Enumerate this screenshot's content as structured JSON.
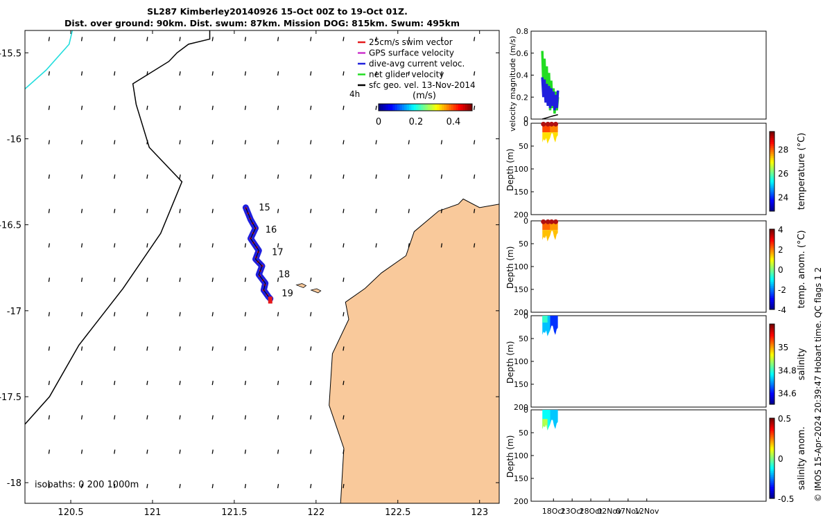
{
  "title": {
    "line1": "SL287 Kimberley20140926 15-Oct 00Z to 19-Oct 01Z.",
    "line2": "Dist. over ground: 90km. Dist. swum: 87km. Mission DOG: 815km. Swum: 495km"
  },
  "footer_note": "© IMOS 15-Apr-2024 20:39:47 Hobart time. QC flags 1  2",
  "isobaths_label": "isobaths: 0   200  1000m",
  "colors": {
    "land": "#f9c99b",
    "swim": "#e41a1c",
    "gps": "#cc33cc",
    "dive": "#1f1fdd",
    "net": "#22dd22",
    "sfc": "#000000",
    "isobath0": "#22dddd"
  },
  "chart_data": [
    {
      "type": "scatter",
      "name": "map",
      "xlabel": "",
      "ylabel": "",
      "xlim": [
        120.22,
        123.12
      ],
      "ylim": [
        -18.12,
        -15.37
      ],
      "xticks": [
        120.5,
        121,
        121.5,
        122,
        122.5,
        123
      ],
      "xtick_labels": [
        "120.5",
        "121",
        "121.5",
        "122",
        "122.5",
        "123"
      ],
      "yticks": [
        -15.5,
        -16,
        -16.5,
        -17,
        -17.5,
        -18
      ],
      "ytick_labels": [
        "-15.5",
        "-16",
        "-16.5",
        "-17",
        "-17.5",
        "-18"
      ],
      "track": {
        "lon": [
          121.57,
          121.6,
          121.63,
          121.6,
          121.65,
          121.63,
          121.67,
          121.65,
          121.69,
          121.68,
          121.71,
          121.72
        ],
        "lat": [
          -16.4,
          -16.47,
          -16.52,
          -16.58,
          -16.65,
          -16.7,
          -16.74,
          -16.79,
          -16.84,
          -16.88,
          -16.92,
          -16.93
        ]
      },
      "day_labels": [
        {
          "text": "15",
          "lon": 121.65,
          "lat": -16.4
        },
        {
          "text": "16",
          "lon": 121.69,
          "lat": -16.53
        },
        {
          "text": "17",
          "lon": 121.73,
          "lat": -16.66
        },
        {
          "text": "18",
          "lon": 121.77,
          "lat": -16.79
        },
        {
          "text": "19",
          "lon": 121.79,
          "lat": -16.9
        }
      ],
      "legend": [
        {
          "label": "25cm/s swim vector",
          "color_key": "swim"
        },
        {
          "label": "GPS surface velocity",
          "color_key": "gps"
        },
        {
          "label": "dive-avg current veloc.",
          "color_key": "dive"
        },
        {
          "label": "net glider velocity",
          "color_key": "net"
        },
        {
          "label": "sfc geo. vel. 13-Nov-2014",
          "color_key": "sfc"
        }
      ],
      "scale_label": "4h",
      "colorbar": {
        "label": "(m/s)",
        "ticks": [
          0,
          0.2,
          0.4
        ],
        "tick_labels": [
          "0",
          "0.2",
          "0.4"
        ],
        "range": [
          0,
          0.5
        ]
      },
      "isobath_200": {
        "lon": [
          120.22,
          120.37,
          120.55,
          120.82,
          121.05,
          121.18,
          120.98,
          120.9,
          120.88,
          121.1,
          121.15,
          121.22,
          121.35,
          121.35
        ],
        "lat": [
          -17.66,
          -17.5,
          -17.2,
          -16.87,
          -16.55,
          -16.25,
          -16.05,
          -15.8,
          -15.68,
          -15.55,
          -15.5,
          -15.45,
          -15.42,
          -15.37
        ]
      },
      "isobath_0": {
        "lon": [
          120.22,
          120.35,
          120.49,
          120.51
        ],
        "lat": [
          -15.71,
          -15.6,
          -15.45,
          -15.37
        ]
      },
      "coast": {
        "lon": [
          122.18,
          122.3,
          122.4,
          122.55,
          122.6,
          122.75,
          122.87,
          122.9,
          123.0,
          123.12,
          123.12,
          122.15,
          122.17,
          122.08,
          122.1,
          122.2,
          122.18
        ],
        "lat": [
          -16.95,
          -16.87,
          -16.78,
          -16.68,
          -16.54,
          -16.42,
          -16.38,
          -16.35,
          -16.4,
          -16.38,
          -18.12,
          -18.12,
          -17.8,
          -17.55,
          -17.25,
          -17.05,
          -16.95
        ]
      }
    },
    {
      "type": "line",
      "name": "velocity",
      "ylabel": "velocity magnitude (m/s)",
      "ylim": [
        0,
        0.8
      ],
      "yticks": [
        0,
        0.2,
        0.4,
        0.6,
        0.8
      ],
      "ytick_labels": [
        "0",
        "0.2",
        "0.4",
        "0.6",
        "0.8"
      ],
      "xlim_days": [
        -3,
        60
      ],
      "series": [
        {
          "name": "net glider velocity",
          "color_key": "net",
          "t": [
            0,
            0.3,
            0.6,
            0.9,
            1.2,
            1.5,
            1.8,
            2.1,
            2.4,
            2.7,
            3.0,
            3.3,
            3.6,
            3.9,
            4.2
          ],
          "values": [
            0.62,
            0.3,
            0.55,
            0.18,
            0.48,
            0.12,
            0.42,
            0.08,
            0.35,
            0.1,
            0.28,
            0.05,
            0.25,
            0.08,
            0.2
          ]
        },
        {
          "name": "dive-avg current veloc.",
          "color_key": "dive",
          "t": [
            0,
            0.3,
            0.6,
            0.9,
            1.2,
            1.5,
            1.8,
            2.1,
            2.4,
            2.7,
            3.0,
            3.3,
            3.6,
            3.9,
            4.2
          ],
          "values": [
            0.38,
            0.2,
            0.36,
            0.15,
            0.32,
            0.12,
            0.3,
            0.1,
            0.28,
            0.12,
            0.25,
            0.08,
            0.22,
            0.1,
            0.26
          ]
        },
        {
          "name": "sfc geo. vel.",
          "color_key": "sfc",
          "t": [
            0,
            1,
            2,
            3,
            4.2
          ],
          "values": [
            0.0,
            0.01,
            0.02,
            0.03,
            0.04
          ]
        }
      ]
    },
    {
      "type": "heatmap",
      "name": "temperature",
      "ylabel": "Depth (m)",
      "colorbar_label": "temperature (°C)",
      "clim": [
        22.8,
        29.5
      ],
      "colorbar_ticks": [
        24,
        26,
        28
      ],
      "colorbar_tick_labels": [
        "24",
        "26",
        "28"
      ],
      "yticks": [
        0,
        50,
        100,
        150,
        200
      ],
      "ytick_labels": [
        "0",
        "50",
        "100",
        "150",
        "200"
      ],
      "depth_bottom": [
        42,
        35,
        38,
        32,
        45,
        38,
        32,
        22,
        22,
        35,
        42,
        30,
        26
      ],
      "dots": [
        0.3,
        1.5,
        2.5,
        3.6
      ],
      "cells": [
        {
          "t0": 0,
          "t1": 2.1,
          "d0": 0,
          "d1": 20,
          "value": 28.2
        },
        {
          "t0": 2.1,
          "t1": 4.2,
          "d0": 0,
          "d1": 20,
          "value": 27.8
        },
        {
          "t0": 0,
          "t1": 4.2,
          "d0": 20,
          "d1": 60,
          "value": 27.2
        }
      ]
    },
    {
      "type": "heatmap",
      "name": "temp anomaly",
      "ylabel": "Depth (m)",
      "colorbar_label": "temp. anom. (°C)",
      "clim": [
        -4,
        4
      ],
      "colorbar_ticks": [
        -4,
        -2,
        0,
        2,
        4
      ],
      "colorbar_tick_labels": [
        "-4",
        "-2",
        "0",
        "2",
        "4"
      ],
      "yticks": [
        0,
        50,
        100,
        150,
        200
      ],
      "ytick_labels": [
        "0",
        "50",
        "100",
        "150",
        "200"
      ],
      "depth_bottom": [
        42,
        35,
        38,
        32,
        45,
        38,
        32,
        22,
        22,
        35,
        42,
        30,
        26
      ],
      "dots": [
        0.3,
        1.5,
        2.5,
        3.6
      ],
      "cells": [
        {
          "t0": 0,
          "t1": 2.1,
          "d0": 0,
          "d1": 20,
          "value": 2.2
        },
        {
          "t0": 2.1,
          "t1": 4.2,
          "d0": 0,
          "d1": 20,
          "value": 1.8
        },
        {
          "t0": 0,
          "t1": 4.2,
          "d0": 20,
          "d1": 60,
          "value": 1.5
        }
      ]
    },
    {
      "type": "heatmap",
      "name": "salinity",
      "ylabel": "Depth (m)",
      "colorbar_label": "salinity",
      "clim": [
        34.5,
        35.2
      ],
      "colorbar_ticks": [
        34.6,
        34.8,
        35
      ],
      "colorbar_tick_labels": [
        "34.6",
        "34.8",
        "35"
      ],
      "yticks": [
        0,
        50,
        100,
        150,
        200
      ],
      "ytick_labels": [
        "0",
        "50",
        "100",
        "150",
        "200"
      ],
      "depth_bottom": [
        42,
        35,
        38,
        32,
        45,
        38,
        32,
        22,
        22,
        35,
        42,
        30,
        26
      ],
      "dots": [],
      "cells": [
        {
          "t0": 0,
          "t1": 2.1,
          "d0": 0,
          "d1": 60,
          "value": 34.72
        },
        {
          "t0": 2.1,
          "t1": 4.2,
          "d0": 0,
          "d1": 60,
          "value": 34.62
        },
        {
          "t0": 0,
          "t1": 1.4,
          "d0": 0,
          "d1": 15,
          "value": 34.8
        }
      ]
    },
    {
      "type": "heatmap",
      "name": "salinity anomaly",
      "ylabel": "Depth (m)",
      "colorbar_label": "salinity anom.",
      "clim": [
        -0.5,
        0.5
      ],
      "colorbar_ticks": [
        -0.5,
        0,
        0.5
      ],
      "colorbar_tick_labels": [
        "-0.5",
        "0",
        "0.5"
      ],
      "yticks": [
        0,
        50,
        100,
        150,
        200
      ],
      "ytick_labels": [
        "0",
        "50",
        "100",
        "150",
        "200"
      ],
      "depth_bottom": [
        42,
        35,
        38,
        32,
        45,
        38,
        32,
        22,
        22,
        35,
        42,
        30,
        26
      ],
      "dots": [],
      "cells": [
        {
          "t0": 0,
          "t1": 2.1,
          "d0": 0,
          "d1": 60,
          "value": -0.12
        },
        {
          "t0": 2.1,
          "t1": 4.2,
          "d0": 0,
          "d1": 60,
          "value": -0.18
        },
        {
          "t0": 0,
          "t1": 1.4,
          "d0": 20,
          "d1": 60,
          "value": 0.05
        }
      ]
    }
  ],
  "time_axis": {
    "ticks": [
      3,
      8,
      13,
      18,
      23,
      28
    ],
    "tick_labels": [
      "18Oct",
      "23Oct",
      "28Oct",
      "02Nov",
      "07Nov",
      "12Nov"
    ]
  }
}
